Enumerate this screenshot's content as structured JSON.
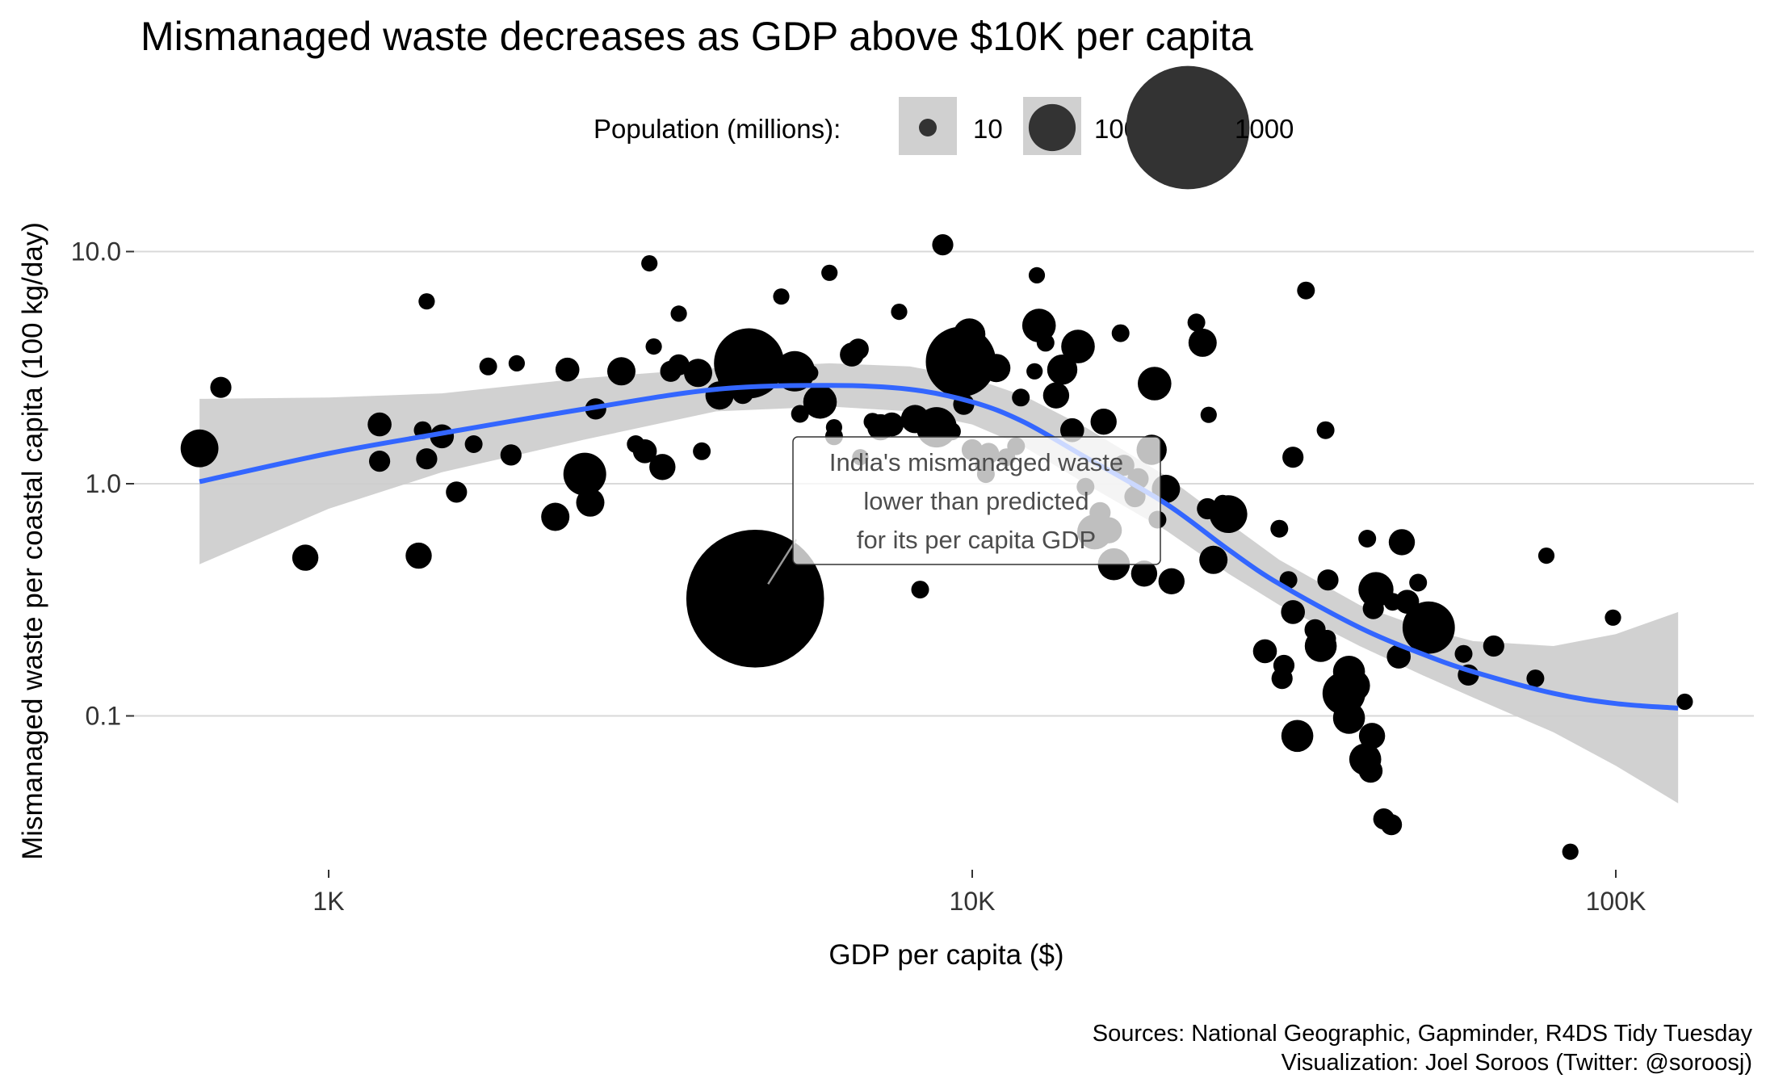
{
  "chart_data": {
    "type": "scatter",
    "title": "Mismanaged waste decreases as GDP above $10K per capita",
    "xlabel": "GDP per capita ($)",
    "ylabel": "Mismanaged waste per coastal capita (100 kg/day)",
    "x_scale": "log10",
    "y_scale": "log10",
    "xlim": [
      500,
      150000
    ],
    "ylim": [
      0.015,
      20
    ],
    "x_ticks": [
      {
        "value": 1000,
        "label": "1K"
      },
      {
        "value": 10000,
        "label": "10K"
      },
      {
        "value": 100000,
        "label": "100K"
      }
    ],
    "y_ticks": [
      {
        "value": 0.1,
        "label": "0.1"
      },
      {
        "value": 1,
        "label": "1.0"
      },
      {
        "value": 10,
        "label": "10.0"
      }
    ],
    "grid": "horizontal major",
    "legend": {
      "title": "Population (millions):",
      "placement": "top",
      "entries": [
        {
          "label": "10",
          "value": 10
        },
        {
          "label": "100",
          "value": 100
        },
        {
          "label": "1000",
          "value": 1000
        }
      ]
    },
    "point_color": "#000000",
    "trend_color": "#3366ff",
    "band_color": "#cccccc",
    "trend": {
      "x": [
        630,
        1000,
        1500,
        2500,
        4000,
        6000,
        8000,
        10000,
        12000,
        15000,
        20000,
        25000,
        30000,
        40000,
        50000,
        60000,
        80000,
        100000,
        125000
      ],
      "y": [
        1.02,
        1.35,
        1.65,
        2.1,
        2.55,
        2.65,
        2.55,
        2.25,
        1.85,
        1.3,
        0.82,
        0.52,
        0.37,
        0.24,
        0.185,
        0.155,
        0.125,
        0.113,
        0.108
      ],
      "lower": [
        0.45,
        0.78,
        1.12,
        1.55,
        2.05,
        2.15,
        2.05,
        1.8,
        1.45,
        1.0,
        0.63,
        0.41,
        0.3,
        0.2,
        0.15,
        0.12,
        0.085,
        0.061,
        0.042
      ],
      "upper": [
        2.32,
        2.35,
        2.45,
        2.85,
        3.15,
        3.3,
        3.2,
        2.85,
        2.4,
        1.75,
        1.08,
        0.68,
        0.47,
        0.3,
        0.24,
        0.21,
        0.2,
        0.225,
        0.28
      ]
    },
    "annotation": {
      "lines": [
        "India's mismanaged waste",
        "lower than predicted",
        "for its per capita GDP"
      ],
      "x": 4600,
      "y": 0.32
    },
    "points": [
      {
        "x": 630,
        "y": 1.42,
        "pop": 60
      },
      {
        "x": 680,
        "y": 2.6,
        "pop": 15
      },
      {
        "x": 920,
        "y": 0.48,
        "pop": 25
      },
      {
        "x": 1200,
        "y": 1.8,
        "pop": 20
      },
      {
        "x": 1200,
        "y": 1.25,
        "pop": 15
      },
      {
        "x": 1380,
        "y": 0.49,
        "pop": 25
      },
      {
        "x": 1400,
        "y": 1.7,
        "pop": 10
      },
      {
        "x": 1420,
        "y": 1.28,
        "pop": 15
      },
      {
        "x": 1420,
        "y": 6.1,
        "pop": 8
      },
      {
        "x": 1500,
        "y": 1.6,
        "pop": 20
      },
      {
        "x": 1580,
        "y": 0.92,
        "pop": 15
      },
      {
        "x": 1680,
        "y": 1.48,
        "pop": 10
      },
      {
        "x": 1770,
        "y": 3.2,
        "pop": 10
      },
      {
        "x": 1920,
        "y": 1.33,
        "pop": 15
      },
      {
        "x": 1960,
        "y": 3.3,
        "pop": 8
      },
      {
        "x": 2250,
        "y": 0.72,
        "pop": 30
      },
      {
        "x": 2350,
        "y": 3.1,
        "pop": 20
      },
      {
        "x": 2500,
        "y": 1.1,
        "pop": 80
      },
      {
        "x": 2550,
        "y": 0.83,
        "pop": 30
      },
      {
        "x": 2600,
        "y": 2.1,
        "pop": 15
      },
      {
        "x": 2850,
        "y": 3.05,
        "pop": 30
      },
      {
        "x": 3000,
        "y": 1.48,
        "pop": 10
      },
      {
        "x": 3100,
        "y": 1.38,
        "pop": 20
      },
      {
        "x": 3150,
        "y": 8.9,
        "pop": 8
      },
      {
        "x": 3200,
        "y": 3.9,
        "pop": 8
      },
      {
        "x": 3300,
        "y": 1.18,
        "pop": 25
      },
      {
        "x": 3500,
        "y": 5.4,
        "pop": 8
      },
      {
        "x": 3500,
        "y": 3.25,
        "pop": 15
      },
      {
        "x": 3400,
        "y": 3.05,
        "pop": 15
      },
      {
        "x": 3800,
        "y": 1.38,
        "pop": 10
      },
      {
        "x": 3750,
        "y": 3.0,
        "pop": 30
      },
      {
        "x": 4050,
        "y": 2.4,
        "pop": 30
      },
      {
        "x": 4200,
        "y": 2.85,
        "pop": 20
      },
      {
        "x": 4400,
        "y": 2.45,
        "pop": 15
      },
      {
        "x": 4500,
        "y": 3.3,
        "pop": 260
      },
      {
        "x": 4700,
        "y": 3.25,
        "pop": 40
      },
      {
        "x": 4600,
        "y": 0.32,
        "pop": 1300
      },
      {
        "x": 5050,
        "y": 6.4,
        "pop": 8
      },
      {
        "x": 5300,
        "y": 3.05,
        "pop": 70
      },
      {
        "x": 5400,
        "y": 2.0,
        "pop": 10
      },
      {
        "x": 5600,
        "y": 3.0,
        "pop": 8
      },
      {
        "x": 5800,
        "y": 2.25,
        "pop": 45
      },
      {
        "x": 6000,
        "y": 8.1,
        "pop": 8
      },
      {
        "x": 6100,
        "y": 1.75,
        "pop": 8
      },
      {
        "x": 6100,
        "y": 1.6,
        "pop": 10
      },
      {
        "x": 6500,
        "y": 3.6,
        "pop": 20
      },
      {
        "x": 6650,
        "y": 3.8,
        "pop": 15
      },
      {
        "x": 6700,
        "y": 1.3,
        "pop": 8
      },
      {
        "x": 7000,
        "y": 1.85,
        "pop": 10
      },
      {
        "x": 7200,
        "y": 1.75,
        "pop": 25
      },
      {
        "x": 7500,
        "y": 1.8,
        "pop": 20
      },
      {
        "x": 7700,
        "y": 5.5,
        "pop": 8
      },
      {
        "x": 8150,
        "y": 1.9,
        "pop": 30
      },
      {
        "x": 8500,
        "y": 1.85,
        "pop": 10
      },
      {
        "x": 8300,
        "y": 0.35,
        "pop": 10
      },
      {
        "x": 8800,
        "y": 1.75,
        "pop": 70
      },
      {
        "x": 9000,
        "y": 10.7,
        "pop": 15
      },
      {
        "x": 9300,
        "y": 1.68,
        "pop": 10
      },
      {
        "x": 9600,
        "y": 3.35,
        "pop": 260
      },
      {
        "x": 9700,
        "y": 2.2,
        "pop": 15
      },
      {
        "x": 9900,
        "y": 4.4,
        "pop": 40
      },
      {
        "x": 9800,
        "y": 3.9,
        "pop": 15
      },
      {
        "x": 10000,
        "y": 1.4,
        "pop": 15
      },
      {
        "x": 10500,
        "y": 1.1,
        "pop": 10
      },
      {
        "x": 10400,
        "y": 1.2,
        "pop": 8
      },
      {
        "x": 10900,
        "y": 3.15,
        "pop": 30
      },
      {
        "x": 10600,
        "y": 1.35,
        "pop": 15
      },
      {
        "x": 11300,
        "y": 1.3,
        "pop": 10
      },
      {
        "x": 11700,
        "y": 1.45,
        "pop": 10
      },
      {
        "x": 11900,
        "y": 2.35,
        "pop": 10
      },
      {
        "x": 12500,
        "y": 3.05,
        "pop": 8
      },
      {
        "x": 12700,
        "y": 4.8,
        "pop": 45
      },
      {
        "x": 13000,
        "y": 4.05,
        "pop": 10
      },
      {
        "x": 12600,
        "y": 7.9,
        "pop": 8
      },
      {
        "x": 13500,
        "y": 2.4,
        "pop": 25
      },
      {
        "x": 13800,
        "y": 3.1,
        "pop": 35
      },
      {
        "x": 14300,
        "y": 1.7,
        "pop": 20
      },
      {
        "x": 14600,
        "y": 3.9,
        "pop": 45
      },
      {
        "x": 15000,
        "y": 0.97,
        "pop": 10
      },
      {
        "x": 15500,
        "y": 0.62,
        "pop": 50
      },
      {
        "x": 15800,
        "y": 0.75,
        "pop": 15
      },
      {
        "x": 16000,
        "y": 1.85,
        "pop": 25
      },
      {
        "x": 16300,
        "y": 0.63,
        "pop": 25
      },
      {
        "x": 16600,
        "y": 0.45,
        "pop": 40
      },
      {
        "x": 17000,
        "y": 4.45,
        "pop": 10
      },
      {
        "x": 17200,
        "y": 1.2,
        "pop": 15
      },
      {
        "x": 17900,
        "y": 0.88,
        "pop": 15
      },
      {
        "x": 18100,
        "y": 1.05,
        "pop": 15
      },
      {
        "x": 18500,
        "y": 0.41,
        "pop": 25
      },
      {
        "x": 19000,
        "y": 1.4,
        "pop": 35
      },
      {
        "x": 19200,
        "y": 2.7,
        "pop": 45
      },
      {
        "x": 19400,
        "y": 0.7,
        "pop": 10
      },
      {
        "x": 20000,
        "y": 0.95,
        "pop": 30
      },
      {
        "x": 20400,
        "y": 0.38,
        "pop": 25
      },
      {
        "x": 22300,
        "y": 4.95,
        "pop": 10
      },
      {
        "x": 22800,
        "y": 4.05,
        "pop": 30
      },
      {
        "x": 23200,
        "y": 0.78,
        "pop": 15
      },
      {
        "x": 23700,
        "y": 0.47,
        "pop": 30
      },
      {
        "x": 23300,
        "y": 1.98,
        "pop": 8
      },
      {
        "x": 25000,
        "y": 0.74,
        "pop": 60
      },
      {
        "x": 24500,
        "y": 0.82,
        "pop": 10
      },
      {
        "x": 28500,
        "y": 0.19,
        "pop": 20
      },
      {
        "x": 30000,
        "y": 0.64,
        "pop": 10
      },
      {
        "x": 30500,
        "y": 0.165,
        "pop": 15
      },
      {
        "x": 30300,
        "y": 0.145,
        "pop": 15
      },
      {
        "x": 31000,
        "y": 0.385,
        "pop": 10
      },
      {
        "x": 31500,
        "y": 0.28,
        "pop": 20
      },
      {
        "x": 31500,
        "y": 1.3,
        "pop": 15
      },
      {
        "x": 32000,
        "y": 0.082,
        "pop": 40
      },
      {
        "x": 33000,
        "y": 6.8,
        "pop": 10
      },
      {
        "x": 34100,
        "y": 0.235,
        "pop": 15
      },
      {
        "x": 34800,
        "y": 0.2,
        "pop": 40
      },
      {
        "x": 35600,
        "y": 0.215,
        "pop": 10
      },
      {
        "x": 35700,
        "y": 0.385,
        "pop": 15
      },
      {
        "x": 35400,
        "y": 1.7,
        "pop": 10
      },
      {
        "x": 37800,
        "y": 0.125,
        "pop": 80
      },
      {
        "x": 38500,
        "y": 0.098,
        "pop": 40
      },
      {
        "x": 38500,
        "y": 0.155,
        "pop": 40
      },
      {
        "x": 39200,
        "y": 0.135,
        "pop": 40
      },
      {
        "x": 40800,
        "y": 0.065,
        "pop": 40
      },
      {
        "x": 41100,
        "y": 0.58,
        "pop": 10
      },
      {
        "x": 41600,
        "y": 0.058,
        "pop": 20
      },
      {
        "x": 41800,
        "y": 0.082,
        "pop": 25
      },
      {
        "x": 42000,
        "y": 0.29,
        "pop": 15
      },
      {
        "x": 42400,
        "y": 0.35,
        "pop": 50
      },
      {
        "x": 43600,
        "y": 0.036,
        "pop": 15
      },
      {
        "x": 44800,
        "y": 0.034,
        "pop": 15
      },
      {
        "x": 45000,
        "y": 0.31,
        "pop": 10
      },
      {
        "x": 46500,
        "y": 0.56,
        "pop": 25
      },
      {
        "x": 46000,
        "y": 0.18,
        "pop": 20
      },
      {
        "x": 47400,
        "y": 0.31,
        "pop": 20
      },
      {
        "x": 49300,
        "y": 0.375,
        "pop": 10
      },
      {
        "x": 51200,
        "y": 0.24,
        "pop": 130
      },
      {
        "x": 58000,
        "y": 0.185,
        "pop": 10
      },
      {
        "x": 59000,
        "y": 0.15,
        "pop": 15
      },
      {
        "x": 64600,
        "y": 0.2,
        "pop": 15
      },
      {
        "x": 75000,
        "y": 0.145,
        "pop": 10
      },
      {
        "x": 78000,
        "y": 0.49,
        "pop": 8
      },
      {
        "x": 85000,
        "y": 0.026,
        "pop": 8
      },
      {
        "x": 99000,
        "y": 0.265,
        "pop": 8
      },
      {
        "x": 128000,
        "y": 0.115,
        "pop": 8
      }
    ]
  },
  "caption": {
    "line1": "Sources: National Geographic, Gapminder, R4DS Tidy Tuesday",
    "line2": "Visualization: Joel Soroos (Twitter: @soroosj)"
  }
}
